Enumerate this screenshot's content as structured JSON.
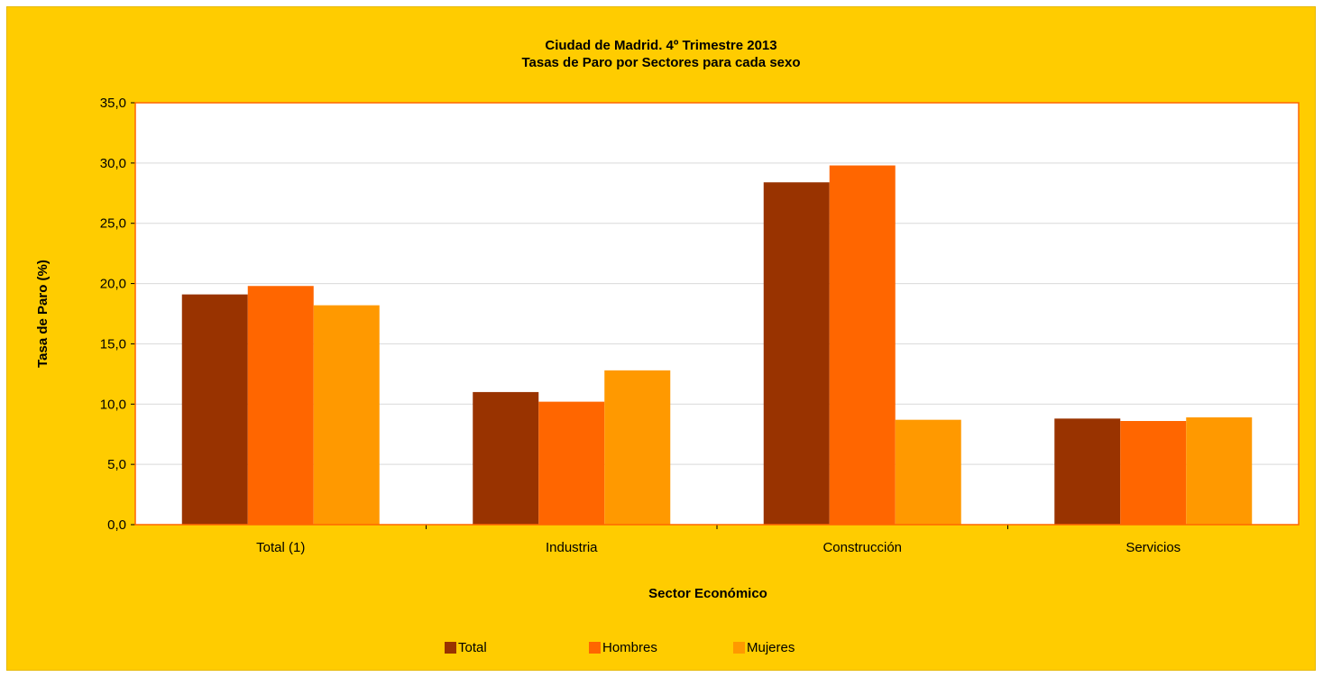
{
  "chart_data": {
    "type": "bar",
    "title_line1": "Ciudad de Madrid. 4º Trimestre 2013",
    "title_line2": "Tasas de Paro por Sectores para cada sexo",
    "xlabel": "Sector Económico",
    "ylabel": "Tasa de Paro (%)",
    "categories": [
      "Total (1)",
      "Industria",
      "Construcción",
      "Servicios"
    ],
    "ylim": [
      0,
      35
    ],
    "yticks": [
      "0,0",
      "5,0",
      "10,0",
      "15,0",
      "20,0",
      "25,0",
      "30,0",
      "35,0"
    ],
    "grid": true,
    "legend_position": "bottom",
    "series": [
      {
        "name": "Total",
        "color": "#993300",
        "values": [
          19.1,
          11.0,
          28.4,
          8.8
        ]
      },
      {
        "name": "Hombres",
        "color": "#ff6600",
        "values": [
          19.8,
          10.2,
          29.8,
          8.6
        ]
      },
      {
        "name": "Mujeres",
        "color": "#ff9900",
        "values": [
          18.2,
          12.8,
          8.7,
          8.9
        ]
      }
    ]
  },
  "colors": {
    "background": "#ffcc00",
    "plot_background": "#ffffff",
    "plot_border": "#ff6600",
    "grid": "#d9d9d9"
  }
}
